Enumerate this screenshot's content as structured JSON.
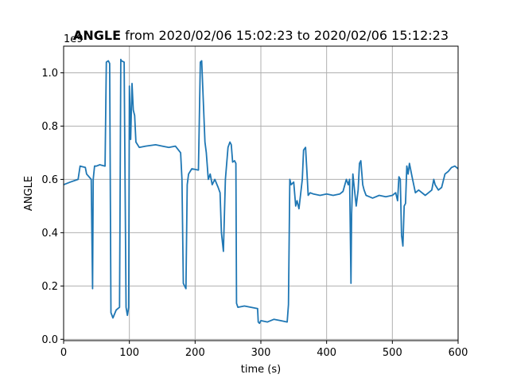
{
  "chart_data": {
    "type": "line",
    "title_bold": "ANGLE",
    "title_rest": " from 2020/02/06 15:02:23 to 2020/02/06 15:12:23",
    "xlabel": "time (s)",
    "ylabel": "ANGLE",
    "offset_label": "1e9",
    "xlim": [
      0,
      600
    ],
    "ylim": [
      -0.005,
      1.1
    ],
    "x_ticks": [
      0,
      100,
      200,
      300,
      400,
      500,
      600
    ],
    "x_tick_labels": [
      "0",
      "100",
      "200",
      "300",
      "400",
      "500",
      "600"
    ],
    "y_ticks": [
      0.0,
      0.2,
      0.4,
      0.6,
      0.8,
      1.0
    ],
    "y_tick_labels": [
      "0.0",
      "0.2",
      "0.4",
      "0.6",
      "0.8",
      "1.0"
    ],
    "grid": true,
    "line_color": "#1f77b4",
    "series": [
      {
        "name": "",
        "x": [
          0,
          10,
          22,
          25,
          33,
          35,
          42,
          44,
          45,
          47,
          50,
          55,
          63,
          65,
          68,
          70,
          72,
          75,
          80,
          85,
          87,
          88,
          92,
          95,
          97,
          99,
          100,
          102,
          104,
          106,
          108,
          110,
          115,
          125,
          140,
          150,
          160,
          170,
          178,
          180,
          182,
          184,
          186,
          188,
          190,
          195,
          205,
          208,
          210,
          215,
          217,
          220,
          223,
          226,
          230,
          235,
          238,
          240,
          243,
          246,
          250,
          253,
          255,
          257,
          260,
          262,
          263,
          265,
          275,
          285,
          295,
          296,
          298,
          300,
          310,
          320,
          330,
          340,
          342,
          344,
          346,
          350,
          353,
          355,
          358,
          363,
          365,
          368,
          370,
          372,
          375,
          380,
          390,
          400,
          410,
          420,
          425,
          430,
          433,
          435,
          437,
          438,
          440,
          442,
          445,
          448,
          450,
          452,
          455,
          457,
          460,
          465,
          470,
          480,
          490,
          500,
          505,
          508,
          510,
          512,
          514,
          516,
          518,
          520,
          522,
          524,
          526,
          530,
          535,
          540,
          550,
          555,
          560,
          563,
          565,
          570,
          575,
          580,
          585,
          590,
          595,
          600
        ],
        "y": [
          0.58,
          0.59,
          0.6,
          0.65,
          0.645,
          0.62,
          0.6,
          0.19,
          0.6,
          0.65,
          0.65,
          0.655,
          0.65,
          1.04,
          1.045,
          1.035,
          0.1,
          0.08,
          0.11,
          0.12,
          1.05,
          1.045,
          1.04,
          0.12,
          0.09,
          0.12,
          0.95,
          0.75,
          0.96,
          0.86,
          0.84,
          0.74,
          0.72,
          0.725,
          0.73,
          0.725,
          0.72,
          0.725,
          0.7,
          0.6,
          0.21,
          0.2,
          0.19,
          0.58,
          0.62,
          0.64,
          0.635,
          1.04,
          1.045,
          0.74,
          0.7,
          0.6,
          0.62,
          0.58,
          0.6,
          0.57,
          0.55,
          0.4,
          0.33,
          0.6,
          0.72,
          0.74,
          0.73,
          0.665,
          0.67,
          0.66,
          0.135,
          0.12,
          0.125,
          0.12,
          0.115,
          0.065,
          0.06,
          0.07,
          0.065,
          0.075,
          0.07,
          0.065,
          0.13,
          0.6,
          0.58,
          0.59,
          0.5,
          0.52,
          0.49,
          0.6,
          0.71,
          0.72,
          0.63,
          0.54,
          0.55,
          0.545,
          0.54,
          0.545,
          0.54,
          0.545,
          0.555,
          0.6,
          0.58,
          0.6,
          0.21,
          0.47,
          0.62,
          0.57,
          0.5,
          0.56,
          0.66,
          0.67,
          0.58,
          0.56,
          0.54,
          0.535,
          0.53,
          0.54,
          0.535,
          0.54,
          0.55,
          0.52,
          0.61,
          0.6,
          0.39,
          0.35,
          0.5,
          0.51,
          0.65,
          0.62,
          0.66,
          0.61,
          0.55,
          0.56,
          0.54,
          0.55,
          0.56,
          0.6,
          0.58,
          0.56,
          0.57,
          0.62,
          0.63,
          0.645,
          0.65,
          0.64
        ]
      }
    ]
  }
}
